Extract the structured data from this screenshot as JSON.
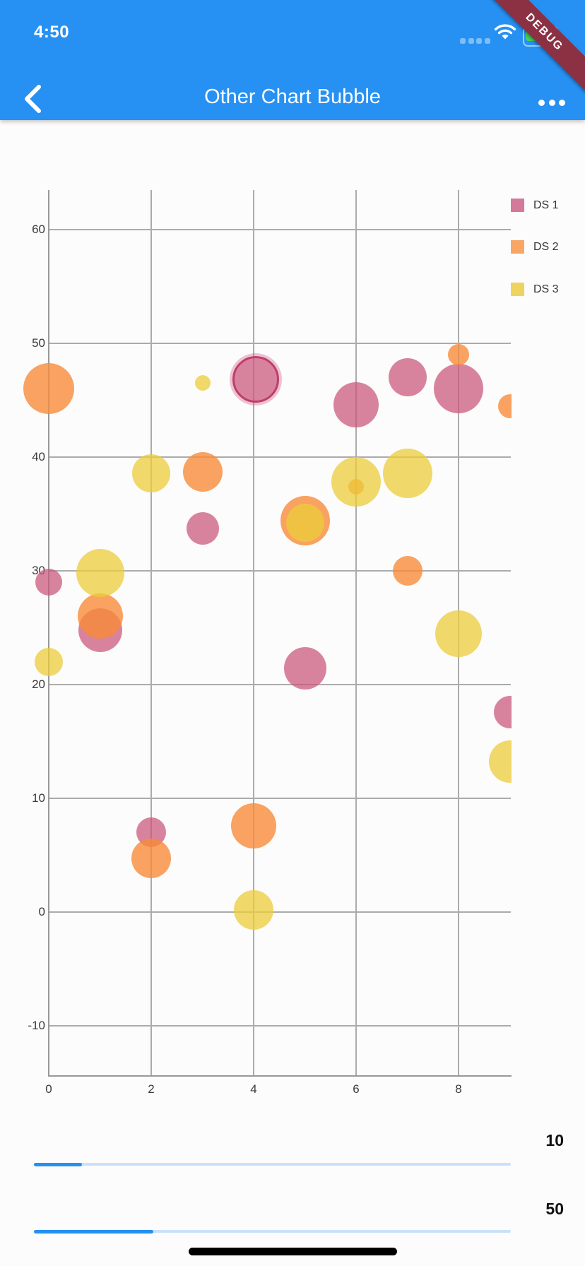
{
  "status_bar": {
    "time": "4:50"
  },
  "app_bar": {
    "title": "Other Chart Bubble"
  },
  "debug_banner": {
    "label": "DEBUG"
  },
  "legend": {
    "items": [
      {
        "label": "DS 1",
        "swatch_color": "#D4799A"
      },
      {
        "label": "DS 2",
        "swatch_color": "#F9A564"
      },
      {
        "label": "DS 3",
        "swatch_color": "#F0D35F"
      }
    ]
  },
  "chart_data": {
    "type": "scatter",
    "subtype": "bubble",
    "xlim": [
      0,
      9.02
    ],
    "ylim": [
      -14.4,
      63.5
    ],
    "x_ticks": [
      0,
      2,
      4,
      6,
      8
    ],
    "y_ticks": [
      60,
      50,
      40,
      30,
      20,
      10,
      0,
      -10
    ],
    "grid": true,
    "legend_position": "top-right",
    "series": [
      {
        "name": "DS 1",
        "fill": "rgba(202,84,120,0.72)",
        "points": [
          {
            "x": 0,
            "y": 29.0,
            "r": 19
          },
          {
            "x": 1,
            "y": 24.8,
            "r": 31
          },
          {
            "x": 2,
            "y": 7.0,
            "r": 21
          },
          {
            "x": 3,
            "y": 33.7,
            "r": 23
          },
          {
            "x": 4,
            "y": 47.0,
            "r": 30,
            "ring": true
          },
          {
            "x": 5,
            "y": 21.4,
            "r": 30
          },
          {
            "x": 6,
            "y": 44.6,
            "r": 32
          },
          {
            "x": 7,
            "y": 47.0,
            "r": 27
          },
          {
            "x": 8,
            "y": 46.0,
            "r": 35
          },
          {
            "x": 9,
            "y": 17.6,
            "r": 23
          }
        ]
      },
      {
        "name": "DS 2",
        "fill": "rgba(247,139,58,0.80)",
        "points": [
          {
            "x": 0,
            "y": 46.0,
            "r": 36
          },
          {
            "x": 1,
            "y": 26.0,
            "r": 32
          },
          {
            "x": 2,
            "y": 4.7,
            "r": 28
          },
          {
            "x": 3,
            "y": 38.7,
            "r": 28
          },
          {
            "x": 4,
            "y": 7.6,
            "r": 32
          },
          {
            "x": 5,
            "y": 34.4,
            "r": 35
          },
          {
            "x": 6,
            "y": 37.4,
            "r": 11
          },
          {
            "x": 7,
            "y": 30.0,
            "r": 21
          },
          {
            "x": 8,
            "y": 49.0,
            "r": 15
          },
          {
            "x": 9,
            "y": 44.5,
            "r": 17
          }
        ]
      },
      {
        "name": "DS 3",
        "fill": "rgba(236,204,58,0.75)",
        "points": [
          {
            "x": 0,
            "y": 22.0,
            "r": 20
          },
          {
            "x": 1,
            "y": 29.8,
            "r": 34
          },
          {
            "x": 2,
            "y": 38.6,
            "r": 27
          },
          {
            "x": 3,
            "y": 46.5,
            "r": 11
          },
          {
            "x": 4,
            "y": 0.2,
            "r": 28
          },
          {
            "x": 5,
            "y": 34.2,
            "r": 27
          },
          {
            "x": 6,
            "y": 37.8,
            "r": 35
          },
          {
            "x": 7,
            "y": 38.6,
            "r": 35
          },
          {
            "x": 8,
            "y": 24.5,
            "r": 33
          },
          {
            "x": 9,
            "y": 13.2,
            "r": 30
          }
        ]
      }
    ],
    "highlight": {
      "series": "DS 1",
      "x": 4,
      "ring_color": "#C13C6A"
    }
  },
  "sliders": [
    {
      "value_label": "10",
      "fraction": 0.1
    },
    {
      "value_label": "50",
      "fraction": 0.25
    }
  ],
  "colors": {
    "app_bar": "#2791F3",
    "slider_active": "#2590F2",
    "slider_inactive": "#C9E2FA",
    "debug_banner": "#8C3144",
    "battery": "#46D15E",
    "grid": "#ABABAB"
  }
}
